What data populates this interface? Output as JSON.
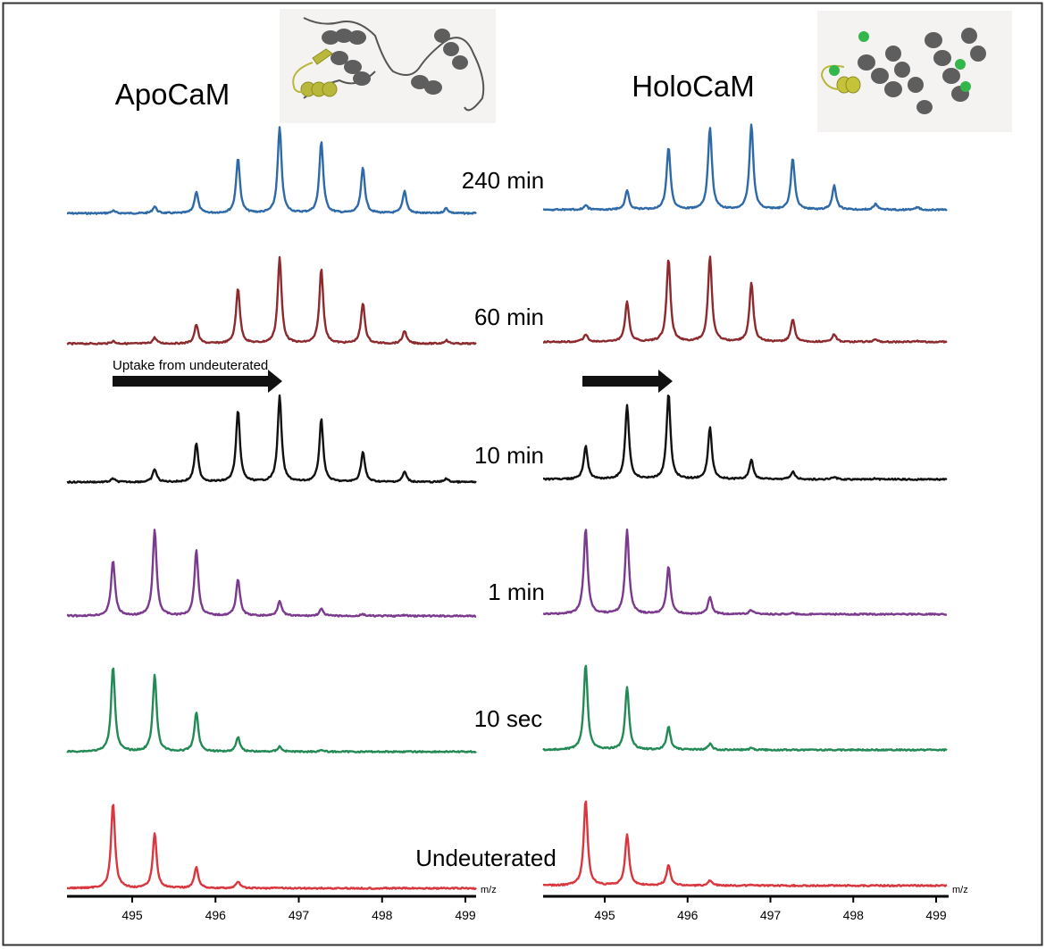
{
  "chart_data": {
    "type": "line",
    "xlabel": "m/z",
    "xlim": [
      494.3,
      499.15
    ],
    "xticks": [
      495,
      496,
      497,
      498,
      499
    ],
    "grid": false,
    "peak_mz": [
      494.77,
      495.27,
      495.77,
      496.27,
      496.77,
      497.27,
      497.77,
      498.27,
      498.77
    ],
    "panels": [
      {
        "title": "ApoCaM",
        "annotation": "Uptake from undeuterated",
        "series": [
          {
            "label": "240 min",
            "color": "#2e6aa8",
            "intensities": [
              3,
              8,
              25,
              64,
              100,
              84,
              53,
              26,
              6
            ]
          },
          {
            "label": "60 min",
            "color": "#8c2a2e",
            "intensities": [
              3,
              7,
              22,
              65,
              100,
              87,
              47,
              15,
              4
            ]
          },
          {
            "label": "10 min",
            "color": "#111111",
            "intensities": [
              4,
              15,
              45,
              83,
              100,
              73,
              35,
              12,
              4
            ]
          },
          {
            "label": "1 min",
            "color": "#7b3a8e",
            "intensities": [
              65,
              100,
              76,
              43,
              18,
              8,
              2,
              1,
              0
            ]
          },
          {
            "label": "10 sec",
            "color": "#238a55",
            "intensities": [
              100,
              89,
              46,
              17,
              6,
              2,
              0,
              0,
              0
            ]
          },
          {
            "label": "Undeuterated",
            "color": "#d9363e",
            "intensities": [
              100,
              64,
              25,
              8,
              1,
              0,
              0,
              0,
              0
            ]
          }
        ]
      },
      {
        "title": "HoloCaM",
        "annotation": "",
        "series": [
          {
            "label": "240 min",
            "color": "#2e6aa8",
            "intensities": [
              5,
              22,
              73,
              96,
              100,
              60,
              28,
              7,
              3
            ]
          },
          {
            "label": "60 min",
            "color": "#8c2a2e",
            "intensities": [
              9,
              47,
              97,
              100,
              69,
              26,
              9,
              3,
              1
            ]
          },
          {
            "label": "10 min",
            "color": "#111111",
            "intensities": [
              39,
              86,
              100,
              60,
              23,
              9,
              3,
              1,
              0
            ]
          },
          {
            "label": "1 min",
            "color": "#7b3a8e",
            "intensities": [
              100,
              98,
              55,
              20,
              5,
              1,
              0,
              0,
              0
            ]
          },
          {
            "label": "10 sec",
            "color": "#238a55",
            "intensities": [
              100,
              73,
              27,
              7,
              2,
              0,
              0,
              0,
              0
            ]
          },
          {
            "label": "Undeuterated",
            "color": "#d9363e",
            "intensities": [
              100,
              60,
              24,
              6,
              1,
              0,
              0,
              0,
              0
            ]
          }
        ]
      }
    ],
    "structure_images": {
      "apo": "calmodulin-apo-ribbon",
      "holo": "calmodulin-holo-ribbon-with-calcium"
    }
  }
}
